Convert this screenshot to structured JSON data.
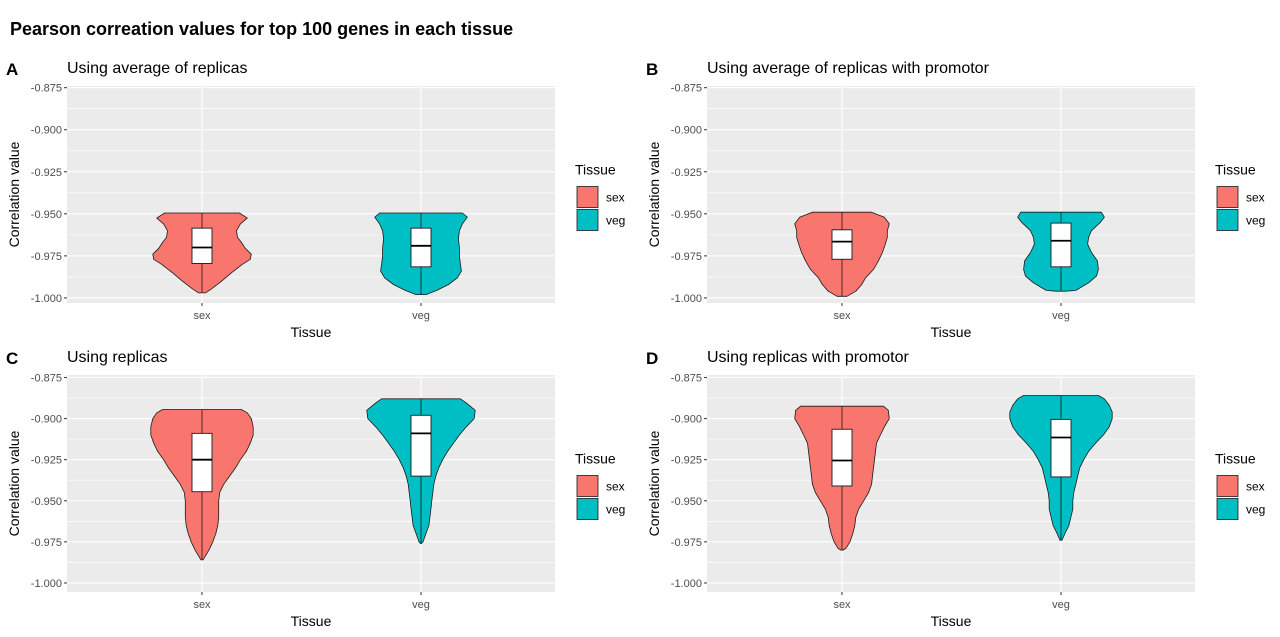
{
  "figure": {
    "title": "Pearson correation values for top 100 genes in each tissue"
  },
  "colors": {
    "sex": "#F8766D",
    "veg": "#00BFC4",
    "panel_bg": "#EBEBEB",
    "grid": "#FFFFFF"
  },
  "chart_data": [
    {
      "type": "violin",
      "letter": "A",
      "title": "Using average of replicas",
      "xlabel": "Tissue",
      "ylabel": "Correlation value",
      "ylim": [
        -1.003,
        -0.874
      ],
      "yticks": [
        "-0.875",
        "-0.900",
        "-0.925",
        "-0.950",
        "-0.975",
        "-1.000"
      ],
      "categories": [
        "sex",
        "veg"
      ],
      "legend": {
        "title": "Tissue",
        "entries": [
          "sex",
          "veg"
        ]
      },
      "series": [
        {
          "category": "sex",
          "violin": {
            "y": [
              -0.9495,
              -0.9525,
              -0.956,
              -0.96,
              -0.964,
              -0.967,
              -0.9705,
              -0.974,
              -0.977,
              -0.98,
              -0.985,
              -0.99,
              -0.9945,
              -0.997
            ],
            "w": [
              0.38,
              0.46,
              0.39,
              0.35,
              0.36,
              0.4,
              0.44,
              0.5,
              0.49,
              0.41,
              0.3,
              0.2,
              0.1,
              0.035
            ]
          },
          "box": {
            "q1": -0.9795,
            "median": -0.97,
            "q3": -0.9585
          }
        },
        {
          "category": "veg",
          "violin": {
            "y": [
              -0.9495,
              -0.952,
              -0.956,
              -0.96,
              -0.965,
              -0.97,
              -0.975,
              -0.98,
              -0.984,
              -0.988,
              -0.992,
              -0.9955,
              -0.998
            ],
            "w": [
              0.42,
              0.47,
              0.42,
              0.39,
              0.38,
              0.39,
              0.39,
              0.4,
              0.41,
              0.37,
              0.28,
              0.16,
              0.05
            ]
          },
          "box": {
            "q1": -0.9815,
            "median": -0.969,
            "q3": -0.9585
          }
        }
      ]
    },
    {
      "type": "violin",
      "letter": "B",
      "title": "Using average of replicas  with promotor",
      "xlabel": "Tissue",
      "ylabel": "Correlation value",
      "ylim": [
        -1.003,
        -0.874
      ],
      "yticks": [
        "-0.875",
        "-0.900",
        "-0.925",
        "-0.950",
        "-0.975",
        "-1.000"
      ],
      "categories": [
        "sex",
        "veg"
      ],
      "legend": {
        "title": "Tissue",
        "entries": [
          "sex",
          "veg"
        ]
      },
      "series": [
        {
          "category": "sex",
          "violin": {
            "y": [
              -0.949,
              -0.952,
              -0.956,
              -0.96,
              -0.964,
              -0.968,
              -0.973,
              -0.978,
              -0.983,
              -0.988,
              -0.992,
              -0.996,
              -0.999
            ],
            "w": [
              0.3,
              0.43,
              0.48,
              0.46,
              0.46,
              0.44,
              0.41,
              0.37,
              0.32,
              0.24,
              0.2,
              0.14,
              0.05
            ]
          },
          "box": {
            "q1": -0.977,
            "median": -0.9665,
            "q3": -0.9595
          }
        },
        {
          "category": "veg",
          "violin": {
            "y": [
              -0.949,
              -0.952,
              -0.955,
              -0.96,
              -0.964,
              -0.968,
              -0.973,
              -0.978,
              -0.983,
              -0.987,
              -0.991,
              -0.9955,
              -0.996
            ],
            "w": [
              0.41,
              0.44,
              0.4,
              0.31,
              0.28,
              0.27,
              0.31,
              0.37,
              0.38,
              0.36,
              0.28,
              0.15,
              0.05
            ]
          },
          "box": {
            "q1": -0.9815,
            "median": -0.966,
            "q3": -0.9555
          }
        }
      ]
    },
    {
      "type": "violin",
      "letter": "C",
      "title": "Using replicas",
      "xlabel": "Tissue",
      "ylabel": "Correlation value",
      "ylim": [
        -1.0055,
        -0.8735
      ],
      "yticks": [
        "-0.875",
        "-0.900",
        "-0.925",
        "-0.950",
        "-0.975",
        "-1.000"
      ],
      "categories": [
        "sex",
        "veg"
      ],
      "legend": {
        "title": "Tissue",
        "entries": [
          "sex",
          "veg"
        ]
      },
      "series": [
        {
          "category": "sex",
          "violin": {
            "y": [
              -0.8945,
              -0.8965,
              -0.9,
              -0.905,
              -0.91,
              -0.915,
              -0.92,
              -0.925,
              -0.93,
              -0.935,
              -0.94,
              -0.945,
              -0.95,
              -0.955,
              -0.96,
              -0.965,
              -0.97,
              -0.975,
              -0.98,
              -0.984,
              -0.986
            ],
            "w": [
              0.4,
              0.46,
              0.5,
              0.52,
              0.52,
              0.49,
              0.45,
              0.39,
              0.34,
              0.28,
              0.22,
              0.18,
              0.17,
              0.17,
              0.17,
              0.16,
              0.14,
              0.11,
              0.07,
              0.03,
              0.01
            ]
          },
          "box": {
            "q1": -0.9445,
            "median": -0.925,
            "q3": -0.909
          }
        },
        {
          "category": "veg",
          "violin": {
            "y": [
              -0.888,
              -0.8905,
              -0.895,
              -0.9,
              -0.905,
              -0.91,
              -0.915,
              -0.92,
              -0.925,
              -0.93,
              -0.935,
              -0.94,
              -0.945,
              -0.95,
              -0.955,
              -0.96,
              -0.965,
              -0.97,
              -0.975,
              -0.976
            ],
            "w": [
              0.4,
              0.46,
              0.55,
              0.54,
              0.46,
              0.39,
              0.33,
              0.27,
              0.22,
              0.18,
              0.15,
              0.13,
              0.12,
              0.11,
              0.1,
              0.09,
              0.08,
              0.05,
              0.02,
              0.005
            ]
          },
          "box": {
            "q1": -0.935,
            "median": -0.909,
            "q3": -0.898
          }
        }
      ]
    },
    {
      "type": "violin",
      "letter": "D",
      "title": "Using replicas  with promotor",
      "xlabel": "Tissue",
      "ylabel": "Correlation value",
      "ylim": [
        -1.0055,
        -0.8735
      ],
      "yticks": [
        "-0.875",
        "-0.900",
        "-0.925",
        "-0.950",
        "-0.975",
        "-1.000"
      ],
      "categories": [
        "sex",
        "veg"
      ],
      "legend": {
        "title": "Tissue",
        "entries": [
          "sex",
          "veg"
        ]
      },
      "series": [
        {
          "category": "sex",
          "violin": {
            "y": [
              -0.8925,
              -0.895,
              -0.9,
              -0.905,
              -0.91,
              -0.915,
              -0.92,
              -0.925,
              -0.93,
              -0.935,
              -0.94,
              -0.945,
              -0.95,
              -0.955,
              -0.96,
              -0.965,
              -0.97,
              -0.975,
              -0.979,
              -0.98
            ],
            "w": [
              0.42,
              0.47,
              0.48,
              0.43,
              0.39,
              0.35,
              0.34,
              0.33,
              0.32,
              0.31,
              0.3,
              0.27,
              0.22,
              0.17,
              0.14,
              0.13,
              0.11,
              0.08,
              0.04,
              0.01
            ]
          },
          "box": {
            "q1": -0.941,
            "median": -0.9255,
            "q3": -0.9065
          }
        },
        {
          "category": "veg",
          "violin": {
            "y": [
              -0.886,
              -0.888,
              -0.892,
              -0.896,
              -0.9,
              -0.905,
              -0.91,
              -0.915,
              -0.92,
              -0.925,
              -0.93,
              -0.935,
              -0.94,
              -0.945,
              -0.95,
              -0.955,
              -0.96,
              -0.965,
              -0.97,
              -0.974
            ],
            "w": [
              0.38,
              0.44,
              0.49,
              0.52,
              0.52,
              0.49,
              0.43,
              0.35,
              0.28,
              0.23,
              0.19,
              0.17,
              0.15,
              0.13,
              0.12,
              0.12,
              0.1,
              0.08,
              0.04,
              0.01
            ]
          },
          "box": {
            "q1": -0.9355,
            "median": -0.9115,
            "q3": -0.9005
          }
        }
      ]
    }
  ]
}
